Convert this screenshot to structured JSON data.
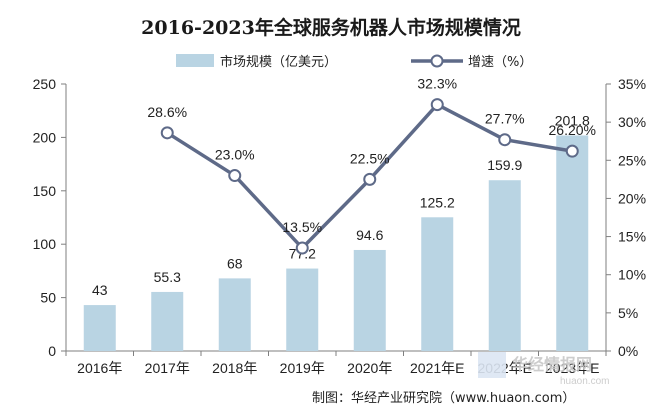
{
  "chart_data": {
    "type": "bar",
    "title": "2016-2023年全球服务机器人市场规模情况",
    "categories": [
      "2016年",
      "2017年",
      "2018年",
      "2019年",
      "2020年",
      "2021年E",
      "2022年E",
      "2023年E"
    ],
    "series": [
      {
        "name": "市场规模（亿美元）",
        "type": "bar",
        "axis": "left",
        "values": [
          43,
          55.3,
          68,
          77.2,
          94.6,
          125.2,
          159.9,
          201.8
        ],
        "labels": [
          "43",
          "55.3",
          "68",
          "77.2",
          "94.6",
          "125.2",
          "159.9",
          "201.8"
        ]
      },
      {
        "name": "增速（%）",
        "type": "line",
        "axis": "right",
        "values": [
          null,
          28.6,
          23.0,
          13.5,
          22.5,
          32.3,
          27.7,
          26.2
        ],
        "labels": [
          "",
          "28.6%",
          "23.0%",
          "13.5%",
          "22.5%",
          "32.3%",
          "27.7%",
          "26.20%"
        ]
      }
    ],
    "ylim_left": [
      0,
      250
    ],
    "yticks_left": [
      "0",
      "50",
      "100",
      "150",
      "200",
      "250"
    ],
    "ylim_right": [
      0,
      35
    ],
    "yticks_right": [
      "0%",
      "5%",
      "10%",
      "15%",
      "20%",
      "25%",
      "30%",
      "35%"
    ],
    "legend_position": "top-center",
    "grid": false
  },
  "footer": "制图：华经产业研究院（www.huaon.com）",
  "watermark": {
    "text": "华经情报网",
    "sub": "huaon.com"
  },
  "colors": {
    "bar": "#b9d4e3",
    "line": "#5e6a88",
    "marker_fill": "#ffffff",
    "axis": "#7f7f7f",
    "text": "#222222"
  }
}
